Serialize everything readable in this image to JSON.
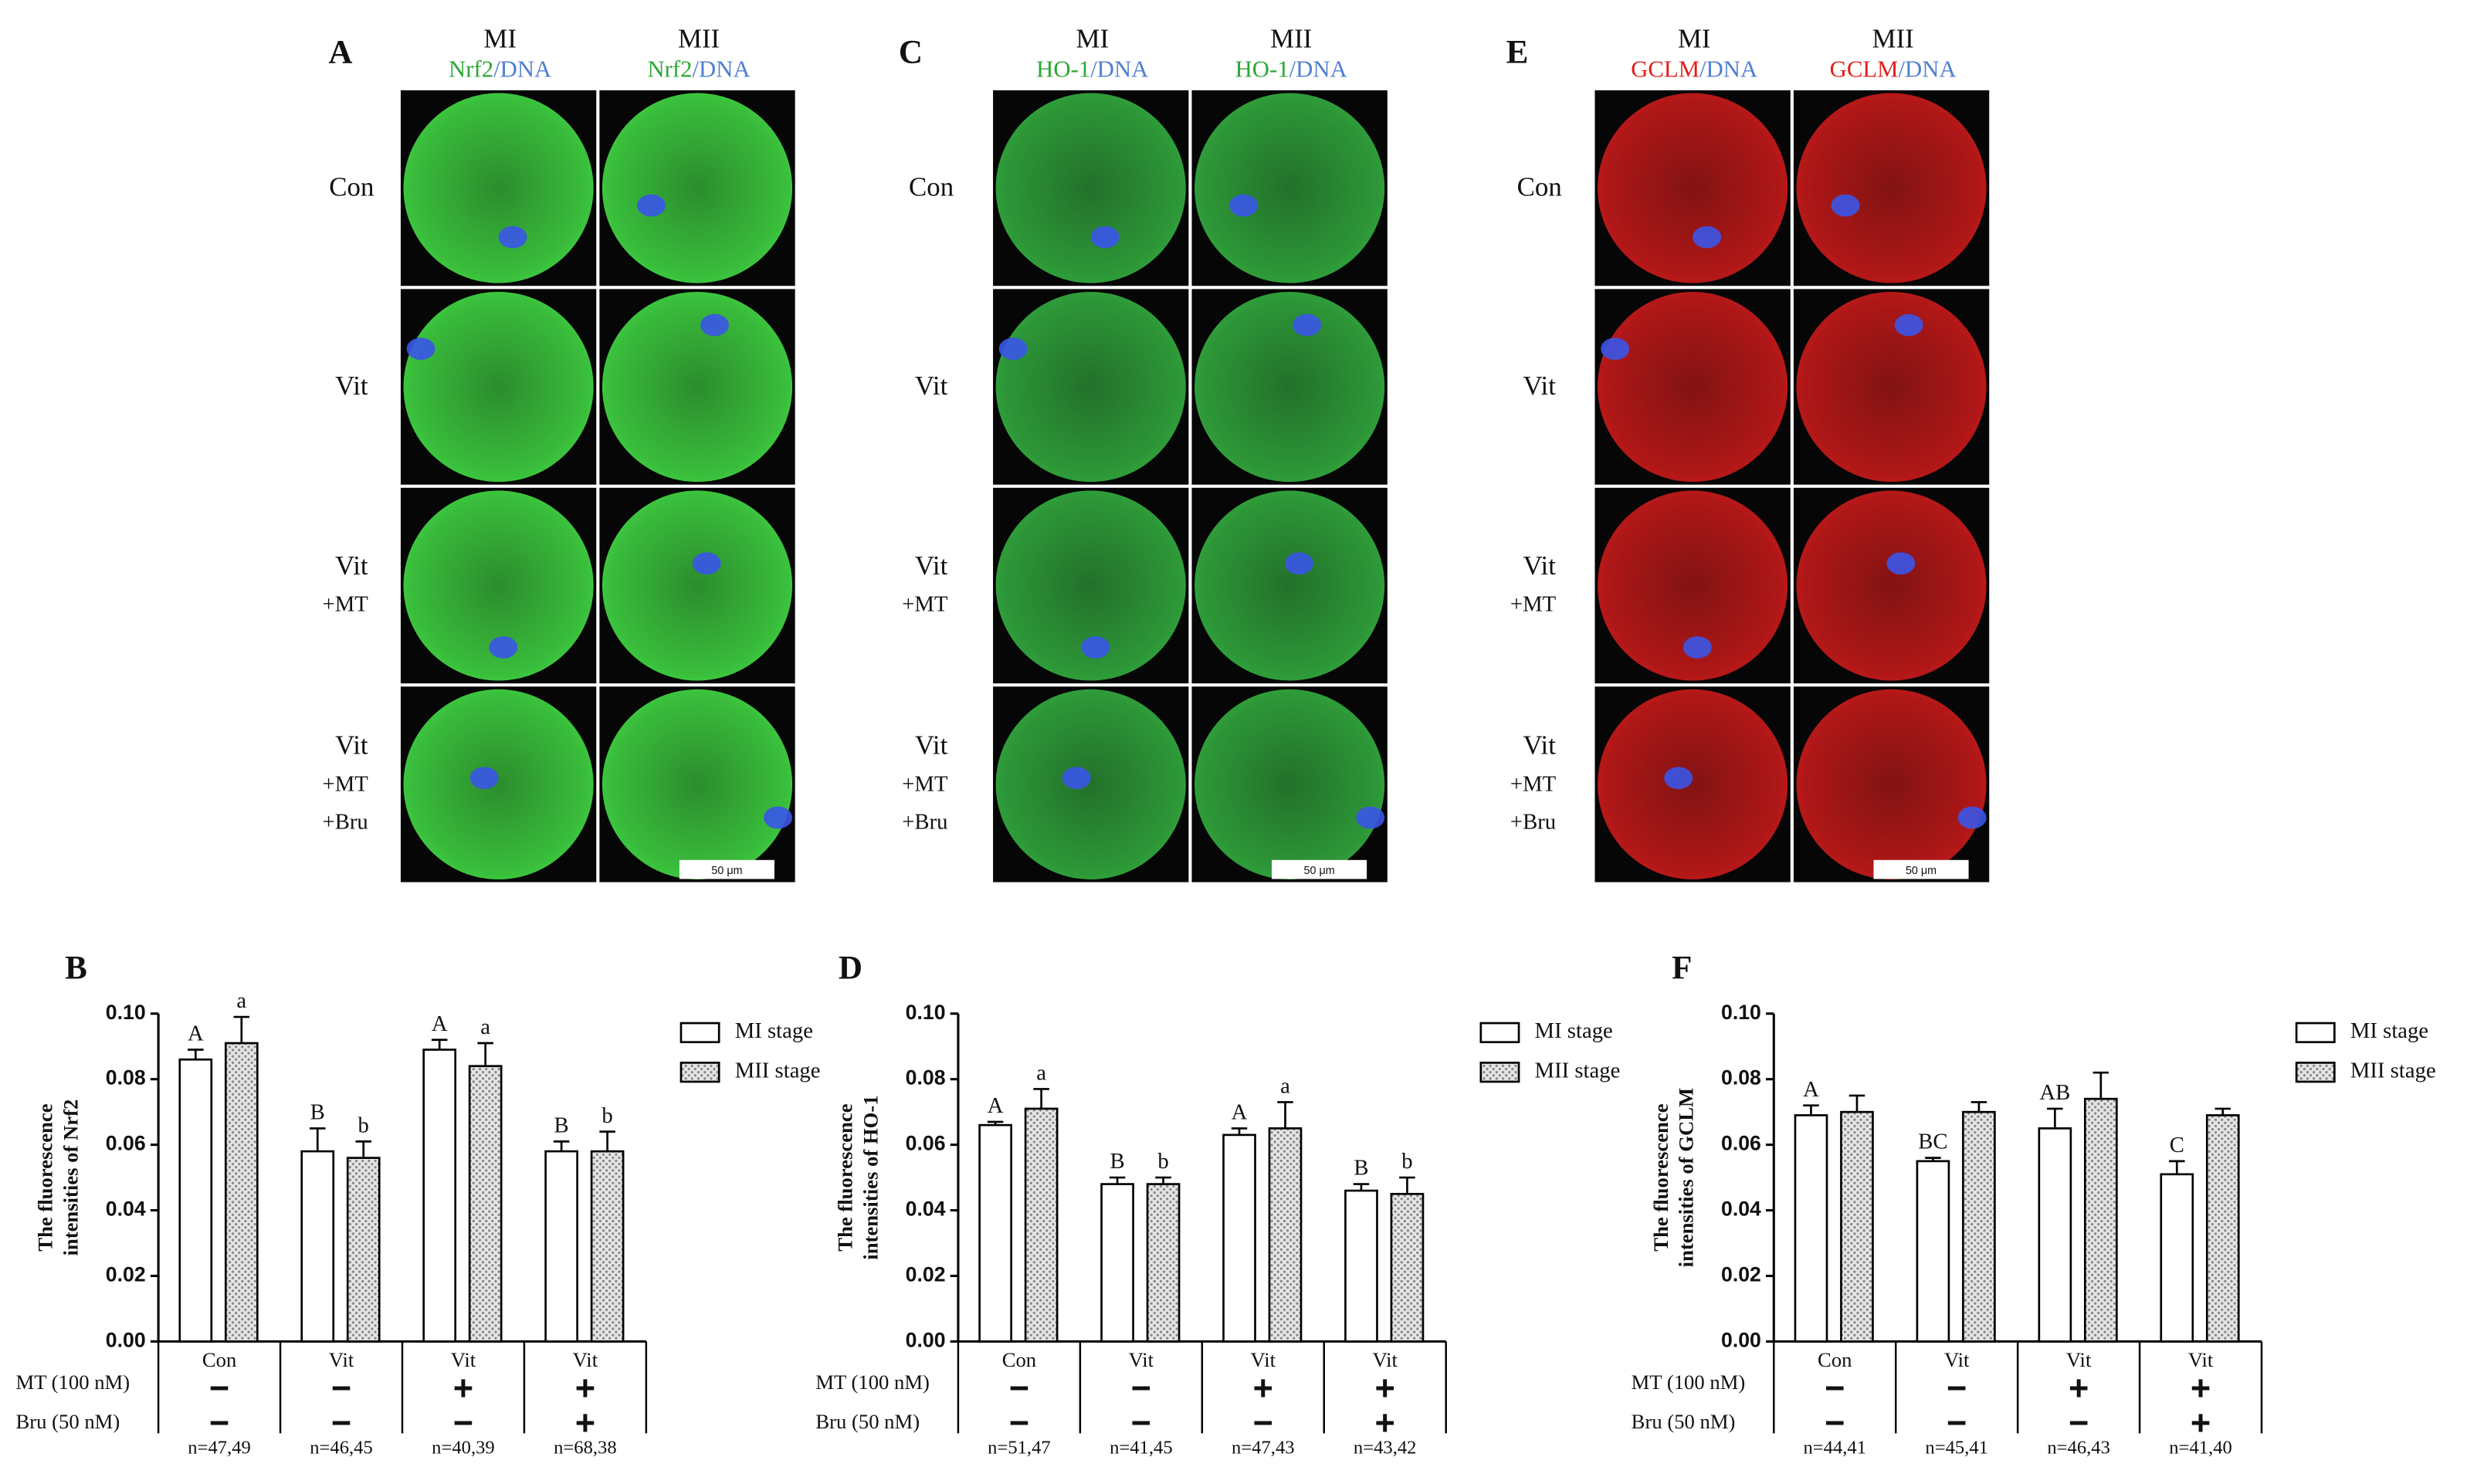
{
  "panels": [
    {
      "letter": "A",
      "columns": [
        {
          "stage": "MI",
          "stain": [
            "Nrf2",
            "/DNA"
          ]
        },
        {
          "stage": "MII",
          "stain": [
            "Nrf2",
            "/DNA"
          ]
        }
      ],
      "stain_colors": [
        "#2aa834",
        "#4f7fd0"
      ],
      "fluor": "#3cc63e",
      "rows": [
        [
          "Con"
        ],
        [
          "Vit"
        ],
        [
          "Vit",
          "+MT"
        ],
        [
          "Vit",
          "+MT",
          "+Bru"
        ]
      ],
      "scale_bar": "50 μm"
    },
    {
      "letter": "C",
      "columns": [
        {
          "stage": "MI",
          "stain": [
            "HO-1",
            "/DNA"
          ]
        },
        {
          "stage": "MII",
          "stain": [
            "HO-1",
            "/DNA"
          ]
        }
      ],
      "stain_colors": [
        "#2aa834",
        "#4f7fd0"
      ],
      "fluor": "#2f9e3a",
      "rows": [
        [
          "Con"
        ],
        [
          "Vit"
        ],
        [
          "Vit",
          "+MT"
        ],
        [
          "Vit",
          "+MT",
          "+Bru"
        ]
      ],
      "scale_bar": "50 μm"
    },
    {
      "letter": "E",
      "columns": [
        {
          "stage": "MI",
          "stain": [
            "GCLM",
            "/DNA"
          ]
        },
        {
          "stage": "MII",
          "stain": [
            "GCLM",
            "/DNA"
          ]
        }
      ],
      "stain_colors": [
        "#e0201c",
        "#4f7fd0"
      ],
      "fluor": "#b81818",
      "rows": [
        [
          "Con"
        ],
        [
          "Vit"
        ],
        [
          "Vit",
          "+MT"
        ],
        [
          "Vit",
          "+MT",
          "+Bru"
        ]
      ],
      "scale_bar": "50 μm"
    }
  ],
  "chart_data": [
    {
      "type": "bar",
      "panel": "B",
      "ylabel": [
        "The fluorescence",
        "intensities of Nrf2"
      ],
      "categories": [
        "Con",
        "Vit",
        "Vit",
        "Vit"
      ],
      "series": [
        {
          "name": "MI stage",
          "color": "#ffffff",
          "values": [
            0.086,
            0.058,
            0.089,
            0.058
          ],
          "errors": [
            0.003,
            0.007,
            0.003,
            0.003
          ],
          "letters": [
            "A",
            "B",
            "A",
            "B"
          ]
        },
        {
          "name": "MII stage",
          "color": "#d4d4d4",
          "pattern": "dots",
          "values": [
            0.091,
            0.056,
            0.084,
            0.058
          ],
          "errors": [
            0.008,
            0.005,
            0.007,
            0.006
          ],
          "letters": [
            "a",
            "b",
            "a",
            "b"
          ]
        }
      ],
      "ylim": [
        0,
        0.1
      ],
      "yticks": [
        {
          "value": 0,
          "label": "0.00"
        },
        {
          "value": 0.02,
          "label": "0.02"
        },
        {
          "value": 0.04,
          "label": "0.04"
        },
        {
          "value": 0.06,
          "label": "0.06"
        },
        {
          "value": 0.08,
          "label": "0.08"
        },
        {
          "value": 0.1,
          "label": "0.10"
        }
      ],
      "treatments": [
        {
          "name": "MT (100 nM)",
          "signs": [
            "−",
            "−",
            "+",
            "+"
          ]
        },
        {
          "name": "Bru (50 nM)",
          "signs": [
            "−",
            "−",
            "−",
            "+"
          ]
        }
      ],
      "n": [
        "n=47,49",
        "n=46,45",
        "n=40,39",
        "n=68,38"
      ],
      "legend": "right"
    },
    {
      "type": "bar",
      "panel": "D",
      "ylabel": [
        "The fluorescence",
        "intensities of HO-1"
      ],
      "categories": [
        "Con",
        "Vit",
        "Vit",
        "Vit"
      ],
      "series": [
        {
          "name": "MI stage",
          "color": "#ffffff",
          "values": [
            0.066,
            0.048,
            0.063,
            0.046
          ],
          "errors": [
            0.001,
            0.002,
            0.002,
            0.002
          ],
          "letters": [
            "A",
            "B",
            "A",
            "B"
          ]
        },
        {
          "name": "MII stage",
          "color": "#d4d4d4",
          "pattern": "dots",
          "values": [
            0.071,
            0.048,
            0.065,
            0.045
          ],
          "errors": [
            0.006,
            0.002,
            0.008,
            0.005
          ],
          "letters": [
            "a",
            "b",
            "a",
            "b"
          ]
        }
      ],
      "ylim": [
        0,
        0.1
      ],
      "yticks": [
        {
          "value": 0,
          "label": "0.00"
        },
        {
          "value": 0.02,
          "label": "0.02"
        },
        {
          "value": 0.04,
          "label": "0.04"
        },
        {
          "value": 0.06,
          "label": "0.06"
        },
        {
          "value": 0.08,
          "label": "0.08"
        },
        {
          "value": 0.1,
          "label": "0.10"
        }
      ],
      "treatments": [
        {
          "name": "MT (100 nM)",
          "signs": [
            "−",
            "−",
            "+",
            "+"
          ]
        },
        {
          "name": "Bru (50 nM)",
          "signs": [
            "−",
            "−",
            "−",
            "+"
          ]
        }
      ],
      "n": [
        "n=51,47",
        "n=41,45",
        "n=47,43",
        "n=43,42"
      ],
      "legend": "right"
    },
    {
      "type": "bar",
      "panel": "F",
      "ylabel": [
        "The fluorescence",
        "intensities of GCLM"
      ],
      "categories": [
        "Con",
        "Vit",
        "Vit",
        "Vit"
      ],
      "series": [
        {
          "name": "MI stage",
          "color": "#ffffff",
          "values": [
            0.069,
            0.055,
            0.065,
            0.051
          ],
          "errors": [
            0.003,
            0.001,
            0.006,
            0.004
          ],
          "letters": [
            "A",
            "BC",
            "AB",
            "C"
          ]
        },
        {
          "name": "MII stage",
          "color": "#d4d4d4",
          "pattern": "dots",
          "values": [
            0.07,
            0.07,
            0.074,
            0.069
          ],
          "errors": [
            0.005,
            0.003,
            0.008,
            0.002
          ]
        }
      ],
      "ylim": [
        0,
        0.1
      ],
      "yticks": [
        {
          "value": 0,
          "label": "0.00"
        },
        {
          "value": 0.02,
          "label": "0.02"
        },
        {
          "value": 0.04,
          "label": "0.04"
        },
        {
          "value": 0.06,
          "label": "0.06"
        },
        {
          "value": 0.08,
          "label": "0.08"
        },
        {
          "value": 0.1,
          "label": "0.10"
        }
      ],
      "treatments": [
        {
          "name": "MT (100 nM)",
          "signs": [
            "−",
            "−",
            "+",
            "+"
          ]
        },
        {
          "name": "Bru (50 nM)",
          "signs": [
            "−",
            "−",
            "−",
            "+"
          ]
        }
      ],
      "n": [
        "n=44,41",
        "n=45,41",
        "n=46,43",
        "n=41,40"
      ],
      "legend": "right"
    }
  ]
}
